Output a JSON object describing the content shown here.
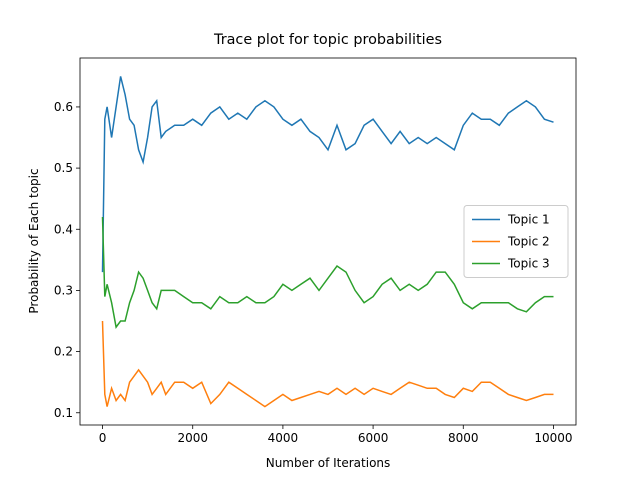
{
  "chart_data": {
    "type": "line",
    "title": "Trace plot for topic probabilities",
    "x_label": "Number of Iterations",
    "y_label": "Probability of Each topic",
    "x": [
      0,
      50,
      100,
      200,
      300,
      400,
      500,
      600,
      700,
      800,
      900,
      1000,
      1100,
      1200,
      1300,
      1400,
      1600,
      1800,
      2000,
      2200,
      2400,
      2600,
      2800,
      3000,
      3200,
      3400,
      3600,
      3800,
      4000,
      4200,
      4400,
      4600,
      4800,
      5000,
      5200,
      5400,
      5600,
      5800,
      6000,
      6200,
      6400,
      6600,
      6800,
      7000,
      7200,
      7400,
      7600,
      7800,
      8000,
      8200,
      8400,
      8600,
      8800,
      9000,
      9200,
      9400,
      9600,
      9800,
      10000
    ],
    "series": [
      {
        "name": "Topic 1",
        "color": "#1f77b4",
        "values": [
          0.33,
          0.58,
          0.6,
          0.55,
          0.6,
          0.65,
          0.62,
          0.58,
          0.57,
          0.53,
          0.51,
          0.55,
          0.6,
          0.61,
          0.55,
          0.56,
          0.57,
          0.57,
          0.58,
          0.57,
          0.59,
          0.6,
          0.58,
          0.59,
          0.58,
          0.6,
          0.61,
          0.6,
          0.58,
          0.57,
          0.58,
          0.56,
          0.55,
          0.53,
          0.57,
          0.53,
          0.54,
          0.57,
          0.58,
          0.56,
          0.54,
          0.56,
          0.54,
          0.55,
          0.54,
          0.55,
          0.54,
          0.53,
          0.57,
          0.59,
          0.58,
          0.58,
          0.57,
          0.59,
          0.6,
          0.61,
          0.6,
          0.58,
          0.575
        ]
      },
      {
        "name": "Topic 2",
        "color": "#ff7f0e",
        "values": [
          0.25,
          0.13,
          0.11,
          0.14,
          0.12,
          0.13,
          0.12,
          0.15,
          0.16,
          0.17,
          0.16,
          0.15,
          0.13,
          0.14,
          0.15,
          0.13,
          0.15,
          0.15,
          0.14,
          0.15,
          0.115,
          0.13,
          0.15,
          0.14,
          0.13,
          0.12,
          0.11,
          0.12,
          0.13,
          0.12,
          0.125,
          0.13,
          0.135,
          0.13,
          0.14,
          0.13,
          0.14,
          0.13,
          0.14,
          0.135,
          0.13,
          0.14,
          0.15,
          0.145,
          0.14,
          0.14,
          0.13,
          0.125,
          0.14,
          0.135,
          0.15,
          0.15,
          0.14,
          0.13,
          0.125,
          0.12,
          0.125,
          0.13,
          0.13
        ]
      },
      {
        "name": "Topic 3",
        "color": "#2ca02c",
        "values": [
          0.42,
          0.29,
          0.31,
          0.28,
          0.24,
          0.25,
          0.25,
          0.28,
          0.3,
          0.33,
          0.32,
          0.3,
          0.28,
          0.27,
          0.3,
          0.3,
          0.3,
          0.29,
          0.28,
          0.28,
          0.27,
          0.29,
          0.28,
          0.28,
          0.29,
          0.28,
          0.28,
          0.29,
          0.31,
          0.3,
          0.31,
          0.32,
          0.3,
          0.32,
          0.34,
          0.33,
          0.3,
          0.28,
          0.29,
          0.31,
          0.32,
          0.3,
          0.31,
          0.3,
          0.31,
          0.33,
          0.33,
          0.31,
          0.28,
          0.27,
          0.28,
          0.28,
          0.28,
          0.28,
          0.27,
          0.265,
          0.28,
          0.29,
          0.29
        ]
      }
    ],
    "xlim": [
      -500,
      10500
    ],
    "ylim": [
      0.08,
      0.68
    ],
    "xticks": [
      0,
      2000,
      4000,
      6000,
      8000,
      10000
    ],
    "yticks": [
      0.1,
      0.2,
      0.3,
      0.4,
      0.5,
      0.6
    ],
    "legend": "center right"
  }
}
